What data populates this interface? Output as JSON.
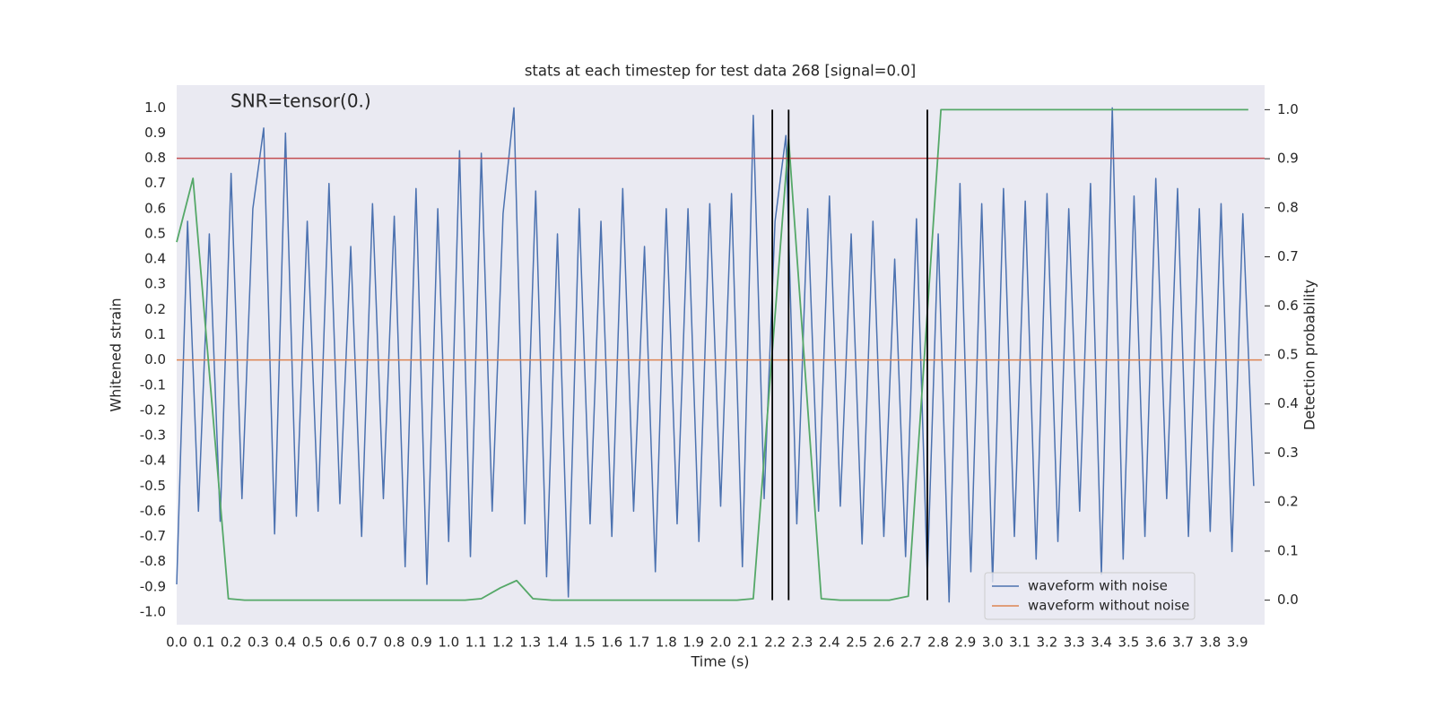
{
  "chart_data": {
    "type": "line",
    "title": "stats at each timestep for test data 268 [signal=0.0]",
    "xlabel": "Time (s)",
    "ylabel": "Whitened strain",
    "y2label": "Detection probability",
    "annotation": "SNR=tensor(0.)",
    "xlim": [
      0,
      4.0
    ],
    "ylim": [
      -1.05,
      1.09
    ],
    "y2lim": [
      -0.05,
      1.05
    ],
    "xticks": [
      {
        "value": 0,
        "label": "0.0"
      },
      0.1,
      0.2,
      0.3,
      0.4,
      0.5,
      0.6,
      0.7,
      0.8,
      0.9,
      {
        "value": 1,
        "label": "1.0"
      },
      1.1,
      1.2,
      1.3,
      1.4,
      1.5,
      1.6,
      1.7,
      1.8,
      1.9,
      {
        "value": 2,
        "label": "2.0"
      },
      2.1,
      2.2,
      2.3,
      2.4,
      2.5,
      2.6,
      2.7,
      2.8,
      2.9,
      {
        "value": 3,
        "label": "3.0"
      },
      3.1,
      3.2,
      3.3,
      3.4,
      3.5,
      3.6,
      3.7,
      3.8,
      3.9
    ],
    "yticks": [
      {
        "value": -1,
        "label": "-1.0"
      },
      -0.9,
      -0.8,
      -0.7,
      -0.6,
      -0.5,
      -0.4,
      -0.3,
      -0.2,
      -0.1,
      {
        "value": 0,
        "label": "0.0"
      },
      0.1,
      0.2,
      0.3,
      0.4,
      0.5,
      0.6,
      0.7,
      0.8,
      0.9,
      {
        "value": 1,
        "label": "1.0"
      }
    ],
    "y2ticks": [
      {
        "value": 0,
        "label": "0.0"
      },
      0.1,
      0.2,
      0.3,
      0.4,
      0.5,
      0.6,
      0.7,
      0.8,
      0.9,
      {
        "value": 1,
        "label": "1.0"
      }
    ],
    "grid": true,
    "legend": "lower right",
    "series": [
      {
        "name": "waveform with noise",
        "color": "#4c72b0",
        "x": [
          0,
          0.04,
          0.08,
          0.12,
          0.16,
          0.2,
          0.24,
          0.28,
          0.32,
          0.36,
          0.4,
          0.44,
          0.48,
          0.52,
          0.56,
          0.6,
          0.64,
          0.68,
          0.72,
          0.76,
          0.8,
          0.84,
          0.88,
          0.92,
          0.96,
          1.0,
          1.04,
          1.08,
          1.12,
          1.16,
          1.2,
          1.24,
          1.28,
          1.32,
          1.36,
          1.4,
          1.44,
          1.48,
          1.52,
          1.56,
          1.6,
          1.64,
          1.68,
          1.72,
          1.76,
          1.8,
          1.84,
          1.88,
          1.92,
          1.96,
          2.0,
          2.04,
          2.08,
          2.12,
          2.16,
          2.2,
          2.24,
          2.28,
          2.32,
          2.36,
          2.4,
          2.44,
          2.48,
          2.52,
          2.56,
          2.6,
          2.64,
          2.68,
          2.72,
          2.76,
          2.8,
          2.84,
          2.88,
          2.92,
          2.96,
          3.0,
          3.04,
          3.08,
          3.12,
          3.16,
          3.2,
          3.24,
          3.28,
          3.32,
          3.36,
          3.4,
          3.44,
          3.48,
          3.52,
          3.56,
          3.6,
          3.64,
          3.68,
          3.72,
          3.76,
          3.8,
          3.84,
          3.88,
          3.92,
          3.96
        ],
        "values": [
          -0.89,
          0.55,
          -0.6,
          0.5,
          -0.64,
          0.74,
          -0.55,
          0.6,
          0.92,
          -0.69,
          0.9,
          -0.62,
          0.55,
          -0.6,
          0.7,
          -0.57,
          0.45,
          -0.7,
          0.62,
          -0.55,
          0.57,
          -0.82,
          0.68,
          -0.89,
          0.6,
          -0.72,
          0.83,
          -0.78,
          0.82,
          -0.6,
          0.58,
          1.0,
          -0.65,
          0.67,
          -0.86,
          0.5,
          -0.94,
          0.6,
          -0.65,
          0.55,
          -0.7,
          0.68,
          -0.6,
          0.45,
          -0.84,
          0.6,
          -0.65,
          0.6,
          -0.72,
          0.62,
          -0.58,
          0.66,
          -0.82,
          0.97,
          -0.55,
          0.55,
          0.89,
          -0.65,
          0.6,
          -0.6,
          0.65,
          -0.58,
          0.5,
          -0.73,
          0.55,
          -0.7,
          0.4,
          -0.78,
          0.56,
          -0.86,
          0.5,
          -0.96,
          0.7,
          -0.84,
          0.62,
          -0.88,
          0.68,
          -0.7,
          0.63,
          -0.79,
          0.66,
          -0.72,
          0.6,
          -0.6,
          0.7,
          -0.85,
          1.0,
          -0.79,
          0.65,
          -0.7,
          0.72,
          -0.55,
          0.68,
          -0.7,
          0.6,
          -0.68,
          0.62,
          -0.76,
          0.58,
          -0.5
        ]
      },
      {
        "name": "waveform without noise",
        "color": "#dd8452",
        "x": [
          0,
          3.99
        ],
        "values": [
          0,
          0
        ]
      },
      {
        "color": "#55a868",
        "axis": "y2",
        "x": [
          0,
          0.06,
          0.19,
          0.25,
          1.06,
          1.12,
          1.19,
          1.25,
          1.31,
          1.38,
          2.06,
          2.12,
          2.25,
          2.37,
          2.44,
          2.62,
          2.69,
          2.81,
          3.94
        ],
        "values": [
          0.73,
          0.86,
          0.003,
          0.0,
          0.0,
          0.003,
          0.025,
          0.04,
          0.003,
          0.0,
          0.0,
          0.003,
          0.94,
          0.003,
          0.0,
          0.0,
          0.008,
          1.0,
          1.0
        ]
      }
    ],
    "hlines": [
      {
        "value": 0.8,
        "color": "#c44e52"
      }
    ],
    "vlines": {
      "x": [
        2.19,
        2.25,
        2.76
      ],
      "color": "#000000",
      "axis": "y2",
      "span": [
        0,
        1
      ]
    }
  }
}
